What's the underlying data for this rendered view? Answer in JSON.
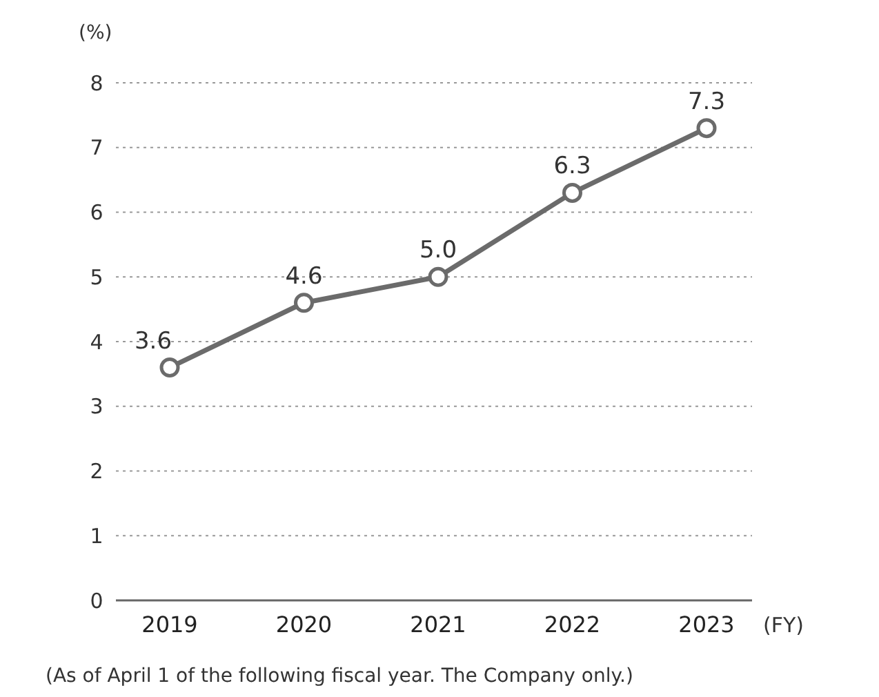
{
  "chart_data": {
    "type": "line",
    "ylabel": "(%)",
    "xlabel": "(FY)",
    "categories": [
      "2019",
      "2020",
      "2021",
      "2022",
      "2023"
    ],
    "series": [
      {
        "color": "#6b6b6b",
        "values": [
          3.6,
          4.6,
          5.0,
          6.3,
          7.3
        ]
      }
    ],
    "ylim": [
      0,
      8
    ],
    "yticks": [
      0,
      1,
      2,
      3,
      4,
      5,
      6,
      7,
      8
    ],
    "grid": "y",
    "marker": "circle",
    "line_style": "solid",
    "value_labels": [
      "3.6",
      "4.6",
      "5.0",
      "6.3",
      "7.3"
    ],
    "annotations": [
      "(As of April 1 of the following fiscal year. The Company only.)"
    ]
  }
}
